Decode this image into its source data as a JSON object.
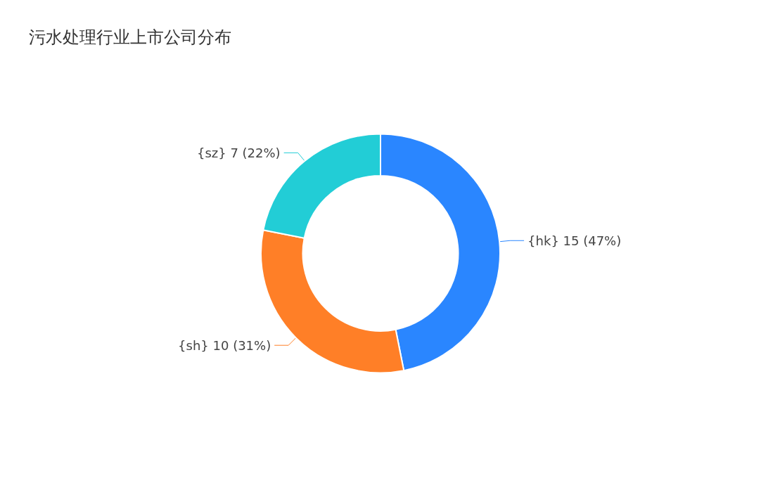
{
  "chart_data": {
    "type": "donut",
    "title": "污水处理行业上市公司分布",
    "categories": [
      "{hk}",
      "{sh}",
      "{sz}"
    ],
    "values": [
      15,
      10,
      7
    ],
    "colors": [
      "#2a86ff",
      "#ff7f27",
      "#22cdd6"
    ],
    "value_labels": [
      "15 (47%)",
      "10 (31%)",
      "7 (22%)"
    ]
  }
}
